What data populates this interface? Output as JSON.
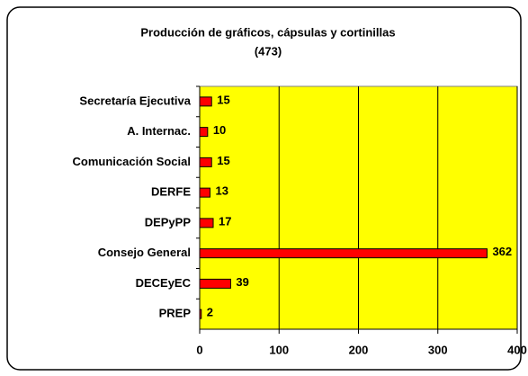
{
  "chart_data": {
    "type": "barh",
    "title": "Producción de gráficos, cápsulas y cortinillas",
    "subtitle": "(473)",
    "categories": [
      "Secretaría Ejecutiva",
      "A. Internac.",
      "Comunicación Social",
      "DERFE",
      "DEPyPP",
      "Consejo General",
      "DECEyEC",
      "PREP"
    ],
    "values": [
      15,
      10,
      15,
      13,
      17,
      362,
      39,
      2
    ],
    "color": "#ff0000",
    "plot_background": "#ffff00",
    "xlim": [
      0,
      400
    ],
    "xticks": [
      0,
      100,
      200,
      300,
      400
    ],
    "grid": true
  }
}
